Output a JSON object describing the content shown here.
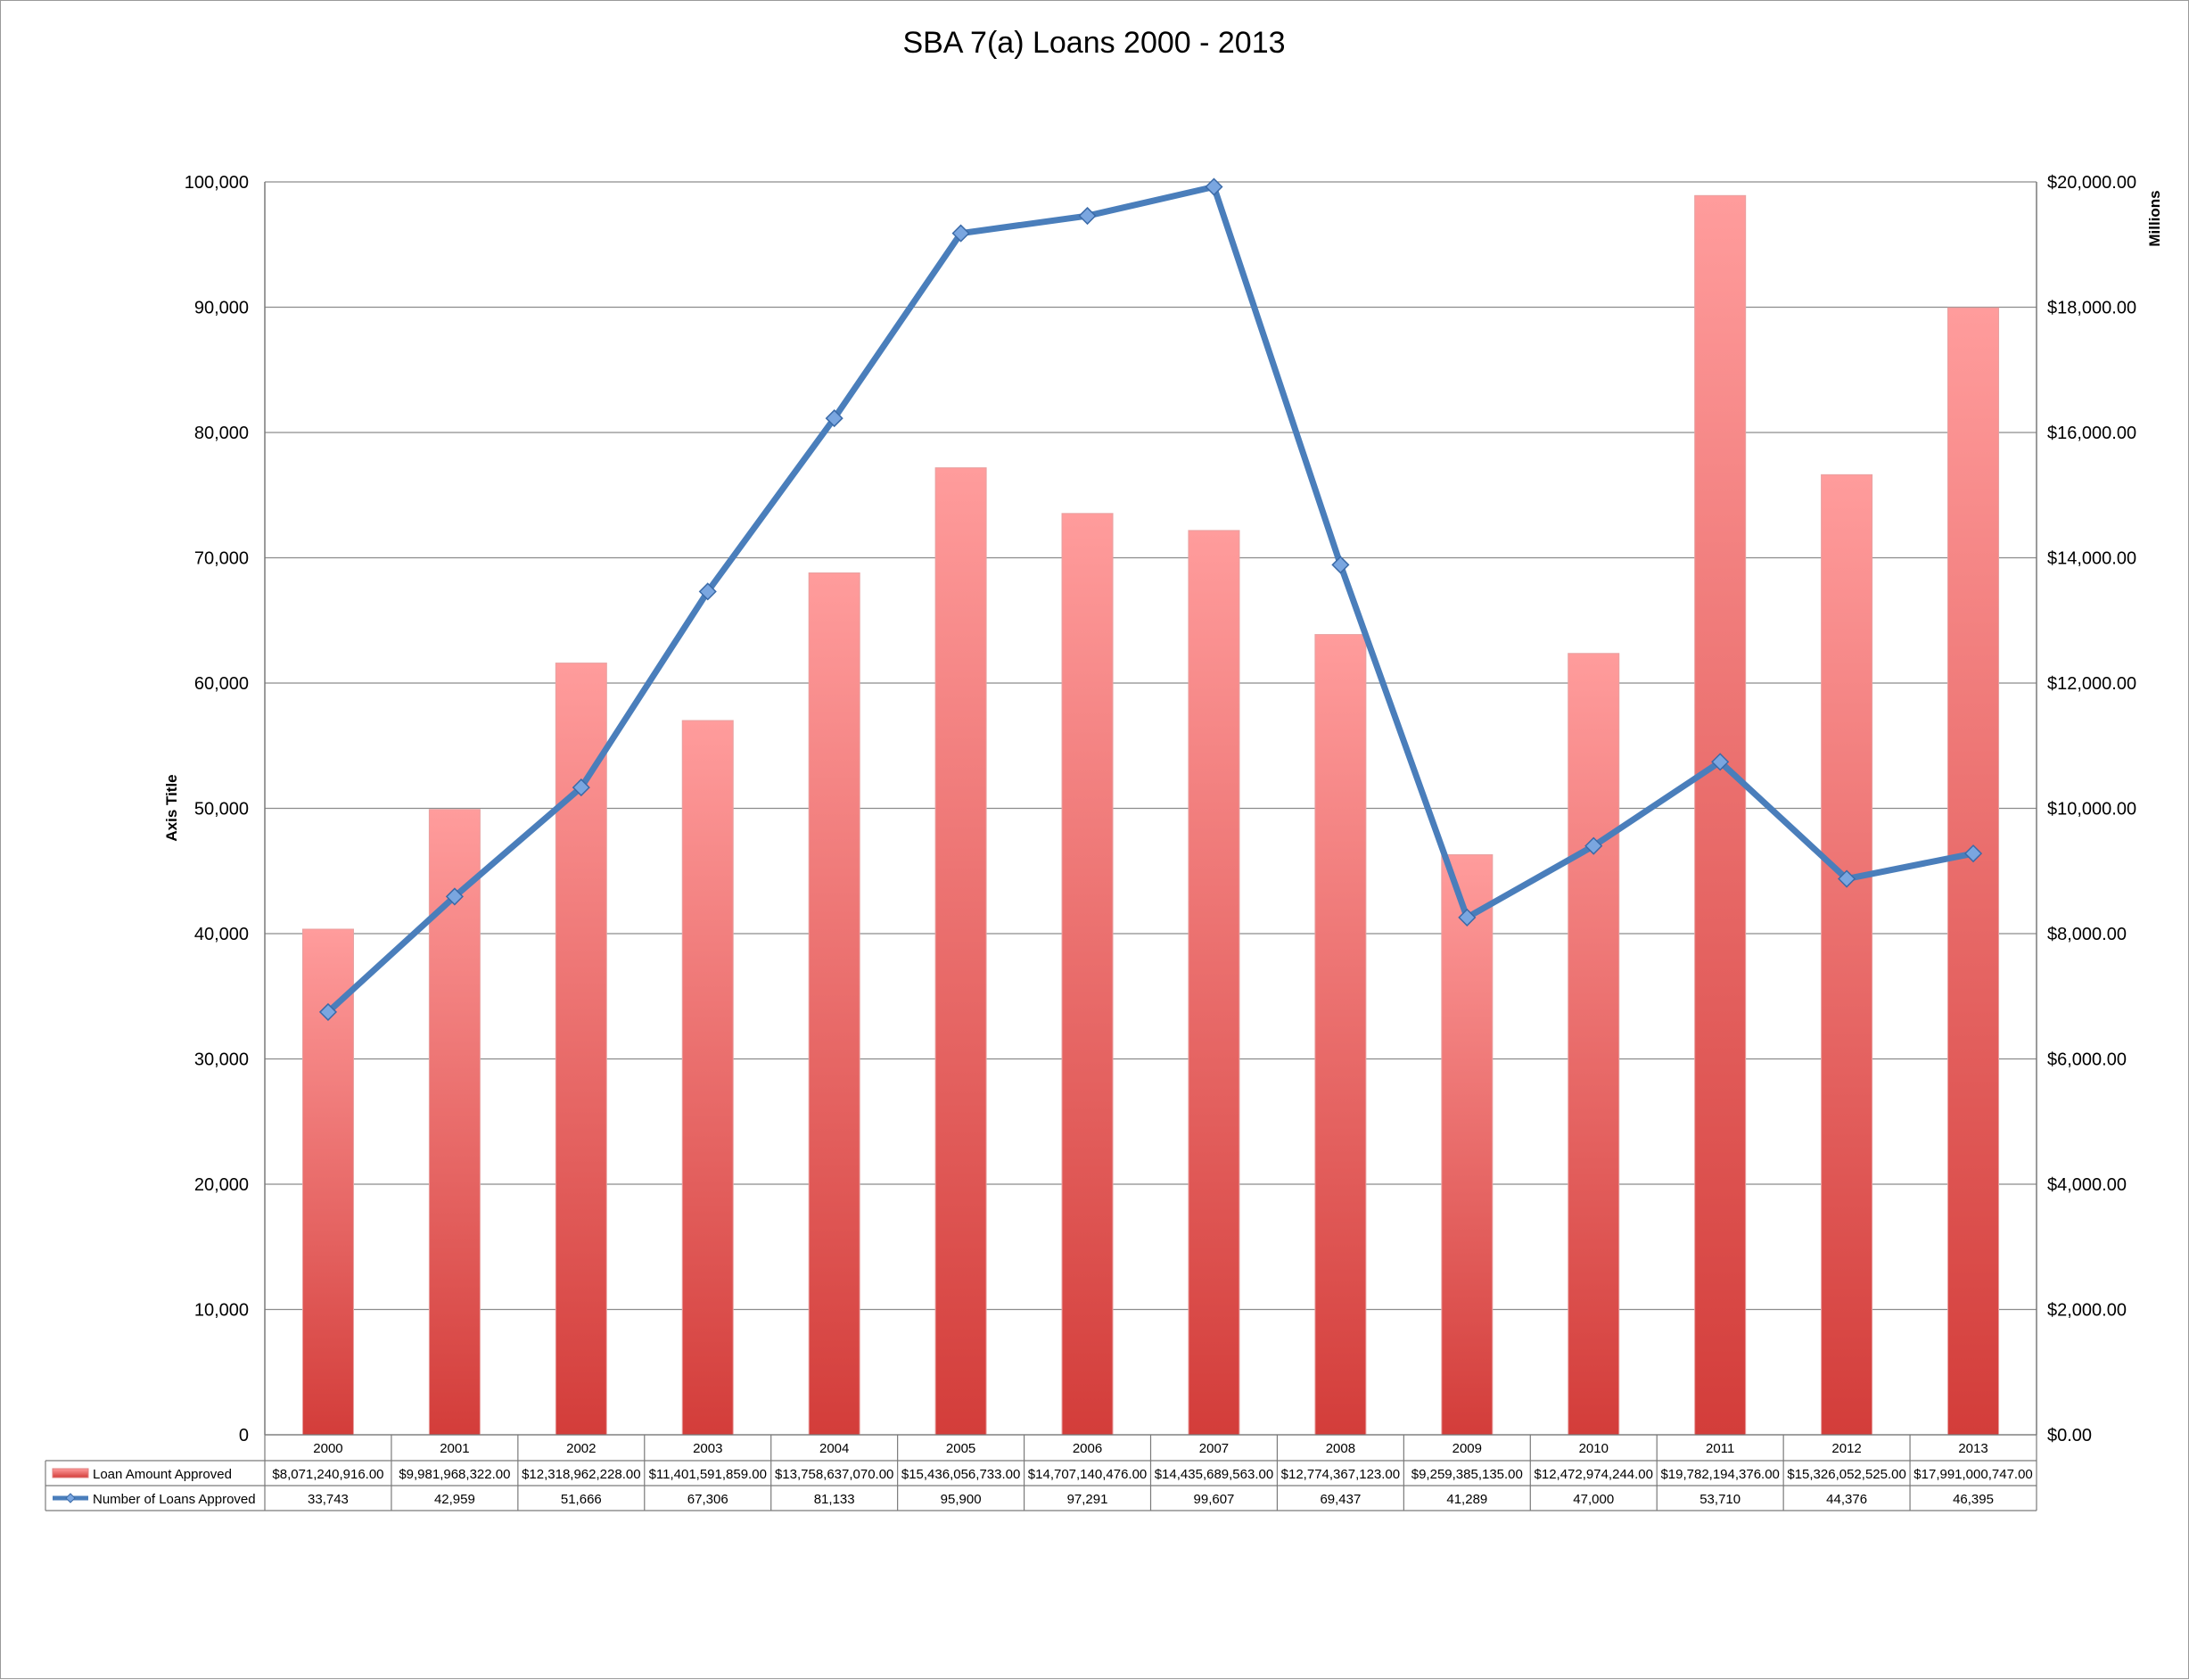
{
  "chart_data": {
    "type": "bar",
    "title": "SBA 7(a) Loans 2000 - 2013",
    "categories": [
      "2000",
      "2001",
      "2002",
      "2003",
      "2004",
      "2005",
      "2006",
      "2007",
      "2008",
      "2009",
      "2010",
      "2011",
      "2012",
      "2013"
    ],
    "series": [
      {
        "name": "Loan Amount Approved",
        "type": "bar",
        "axis": "right",
        "color": "#e0524f",
        "values": [
          8071240916.0,
          9981968322.0,
          12318962228.0,
          11401591859.0,
          13758637070.0,
          15436056733.0,
          14707140476.0,
          14435689563.0,
          12774367123.0,
          9259385135.0,
          12472974244.0,
          19782194376.0,
          15326052525.0,
          17991000747.0
        ],
        "labels": [
          "$8,071,240,916.00",
          "$9,981,968,322.00",
          "$12,318,962,228.00",
          "$11,401,591,859.00",
          "$13,758,637,070.00",
          "$15,436,056,733.00",
          "$14,707,140,476.00",
          "$14,435,689,563.00",
          "$12,774,367,123.00",
          "$9,259,385,135.00",
          "$12,472,974,244.00",
          "$19,782,194,376.00",
          "$15,326,052,525.00",
          "$17,991,000,747.00"
        ]
      },
      {
        "name": "Number of Loans Approved",
        "type": "line",
        "axis": "left",
        "color": "#4a7ebb",
        "values": [
          33743,
          42959,
          51666,
          67306,
          81133,
          95900,
          97291,
          99607,
          69437,
          41289,
          47000,
          53710,
          44376,
          46395
        ],
        "labels": [
          "33,743",
          "42,959",
          "51,666",
          "67,306",
          "81,133",
          "95,900",
          "97,291",
          "99,607",
          "69,437",
          "41,289",
          "47,000",
          "53,710",
          "44,376",
          "46,395"
        ]
      }
    ],
    "y_left": {
      "label": "Axis Title",
      "range": [
        0,
        100000
      ],
      "ticks": [
        "0",
        "10,000",
        "20,000",
        "30,000",
        "40,000",
        "50,000",
        "60,000",
        "70,000",
        "80,000",
        "90,000",
        "100,000"
      ]
    },
    "y_right": {
      "label": "Millions",
      "range": [
        0,
        20000
      ],
      "ticks": [
        "$0.00",
        "$2,000.00",
        "$4,000.00",
        "$6,000.00",
        "$8,000.00",
        "$10,000.00",
        "$12,000.00",
        "$14,000.00",
        "$16,000.00",
        "$18,000.00",
        "$20,000.00"
      ]
    },
    "grid": true,
    "data_table": true,
    "legend": "data-table-left"
  }
}
